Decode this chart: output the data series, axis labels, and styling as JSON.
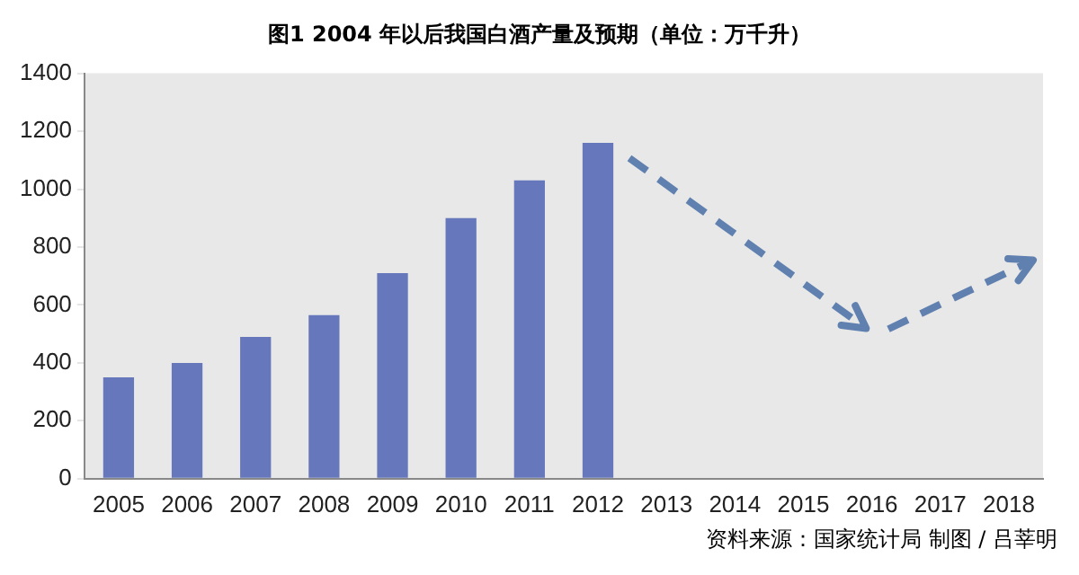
{
  "chart_data": {
    "type": "bar",
    "title": "图1   2004 年以后我国白酒产量及预期（单位：万千升）",
    "categories": [
      "2005",
      "2006",
      "2007",
      "2008",
      "2009",
      "2010",
      "2011",
      "2012",
      "2013",
      "2014",
      "2015",
      "2016",
      "2017",
      "2018"
    ],
    "series": [
      {
        "color": "#6677bb",
        "values": [
          350,
          400,
          490,
          565,
          710,
          900,
          1030,
          1160,
          null,
          null,
          null,
          null,
          null,
          null
        ]
      }
    ],
    "ylim": [
      0,
      1400
    ],
    "yticks": [
      0,
      200,
      400,
      600,
      800,
      1000,
      1200,
      1400
    ],
    "grid": false,
    "legend": false,
    "annotations": [
      "资料来源：国家统计局  制图 / 吕莘明"
    ]
  }
}
